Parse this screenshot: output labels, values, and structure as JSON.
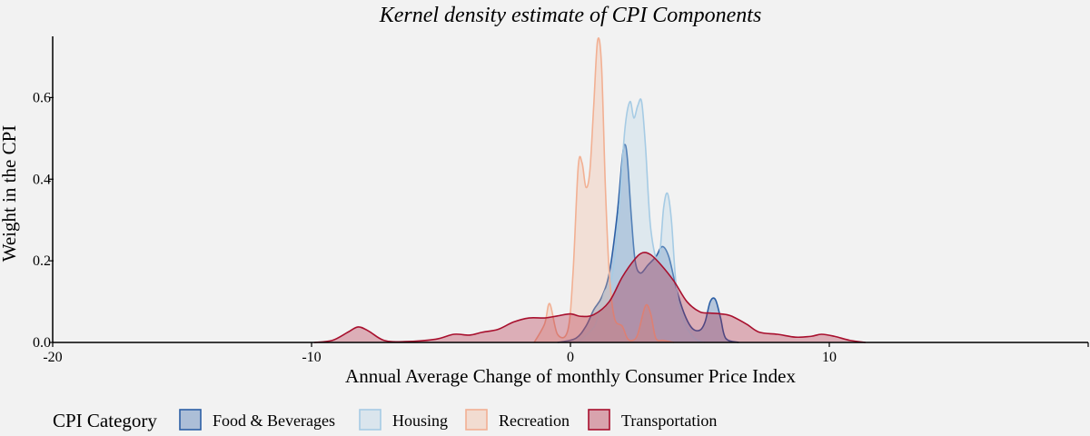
{
  "chart_data": {
    "type": "area",
    "title": "Kernel density estimate of CPI Components",
    "xlabel": "Annual Average Change of monthly Consumer Price Index",
    "ylabel": "Weight in the CPI",
    "xlim": [
      -20,
      20
    ],
    "ylim": [
      0,
      0.75
    ],
    "x_ticks": [
      -20,
      -10,
      0,
      10,
      20
    ],
    "x_tick_labels": [
      "-20",
      "-10",
      "0",
      "10",
      ""
    ],
    "y_ticks": [
      0,
      0.2,
      0.4,
      0.6
    ],
    "y_tick_labels": [
      "0.0",
      "0.2",
      "0.4",
      "0.6"
    ],
    "grid": false,
    "legend": {
      "title": "CPI Category",
      "placement": "bottom-left"
    },
    "series": [
      {
        "name": "Food & Beverages",
        "fill": "#2c5fa5",
        "line": "#2c5fa5",
        "x": [
          -0.5,
          0.2,
          0.6,
          0.9,
          1.2,
          1.5,
          1.8,
          2.0,
          2.1,
          2.2,
          2.35,
          2.5,
          2.7,
          3.0,
          3.3,
          3.55,
          3.8,
          4.1,
          4.4,
          4.7,
          5.0,
          5.2,
          5.4,
          5.6,
          5.8,
          6.0,
          6.5
        ],
        "y": [
          0,
          0.01,
          0.04,
          0.08,
          0.11,
          0.17,
          0.31,
          0.45,
          0.485,
          0.45,
          0.31,
          0.2,
          0.17,
          0.19,
          0.21,
          0.235,
          0.21,
          0.13,
          0.07,
          0.035,
          0.03,
          0.05,
          0.1,
          0.105,
          0.06,
          0.01,
          0
        ]
      },
      {
        "name": "Housing",
        "fill": "#b0cfe6",
        "line": "#a6cbe4",
        "x": [
          0.3,
          0.8,
          1.0,
          1.3,
          1.6,
          1.85,
          2.1,
          2.3,
          2.45,
          2.6,
          2.75,
          2.9,
          3.1,
          3.4,
          3.6,
          3.75,
          3.9,
          4.1,
          4.4,
          4.8,
          5.2
        ],
        "y": [
          0,
          0.03,
          0.05,
          0.12,
          0.16,
          0.3,
          0.52,
          0.59,
          0.55,
          0.58,
          0.59,
          0.48,
          0.28,
          0.2,
          0.33,
          0.365,
          0.3,
          0.13,
          0.05,
          0.01,
          0
        ]
      },
      {
        "name": "Recreation",
        "fill": "#f3b496",
        "line": "#f2b093",
        "x": [
          -1.4,
          -1.0,
          -0.8,
          -0.5,
          -0.1,
          0.1,
          0.3,
          0.45,
          0.6,
          0.75,
          0.9,
          1.05,
          1.2,
          1.35,
          1.5,
          1.7,
          2.0,
          2.2,
          2.4,
          2.6,
          2.9,
          3.1,
          3.3,
          3.6,
          4.0
        ],
        "y": [
          0,
          0.045,
          0.095,
          0.02,
          0.03,
          0.17,
          0.43,
          0.44,
          0.38,
          0.42,
          0.58,
          0.74,
          0.68,
          0.38,
          0.17,
          0.06,
          0.04,
          0.01,
          0.005,
          0.02,
          0.09,
          0.07,
          0.01,
          0.005,
          0
        ]
      },
      {
        "name": "Transportation",
        "fill": "#a8102e",
        "line": "#a8102e",
        "x": [
          -9.9,
          -9.2,
          -8.6,
          -8.2,
          -7.8,
          -7.2,
          -6.4,
          -5.2,
          -4.5,
          -3.9,
          -3.4,
          -2.8,
          -2.2,
          -1.6,
          -1.0,
          -0.5,
          0.0,
          0.4,
          0.9,
          1.5,
          2.0,
          2.5,
          2.8,
          3.1,
          3.5,
          4.0,
          4.5,
          5.0,
          5.4,
          5.8,
          6.2,
          6.8,
          7.3,
          8.0,
          8.7,
          9.3,
          9.7,
          10.2,
          10.8,
          11.4
        ],
        "y": [
          0,
          0.005,
          0.025,
          0.038,
          0.028,
          0.005,
          0.002,
          0.008,
          0.02,
          0.018,
          0.025,
          0.032,
          0.05,
          0.06,
          0.06,
          0.065,
          0.07,
          0.064,
          0.068,
          0.1,
          0.16,
          0.205,
          0.22,
          0.215,
          0.19,
          0.15,
          0.1,
          0.075,
          0.072,
          0.07,
          0.065,
          0.045,
          0.025,
          0.02,
          0.013,
          0.015,
          0.02,
          0.015,
          0.005,
          0
        ]
      }
    ]
  }
}
